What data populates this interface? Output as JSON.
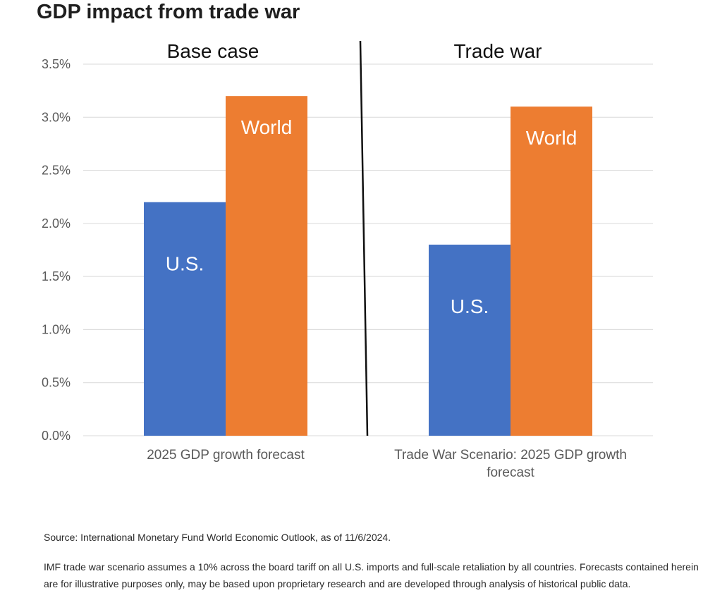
{
  "page": {
    "title": "GDP impact from trade war"
  },
  "chart_data": {
    "type": "bar",
    "title": "GDP impact from trade war",
    "xlabel": "",
    "ylabel": "",
    "ylim": [
      0,
      3.5
    ],
    "y_ticks": [
      "0.0%",
      "0.5%",
      "1.0%",
      "1.5%",
      "2.0%",
      "2.5%",
      "3.0%",
      "3.5%"
    ],
    "grid": true,
    "panels": [
      {
        "heading": "Base case",
        "category": "2025 GDP growth forecast",
        "category_lines": [
          "2025 GDP growth forecast"
        ],
        "bars": [
          {
            "label": "U.S.",
            "value": 2.2
          },
          {
            "label": "World",
            "value": 3.2
          }
        ]
      },
      {
        "heading": "Trade war",
        "category": "Trade War Scenario: 2025 GDP growth forecast",
        "category_lines": [
          "Trade War Scenario: 2025 GDP growth",
          "forecast"
        ],
        "bars": [
          {
            "label": "U.S.",
            "value": 1.8
          },
          {
            "label": "World",
            "value": 3.1
          }
        ]
      }
    ],
    "colors": {
      "U.S.": "#4472c4",
      "World": "#ed7d31",
      "grid": "#d9d9d9",
      "divider": "#111111",
      "axis_text": "#595959"
    }
  },
  "footnotes": {
    "source": "Source: International Monetary Fund World Economic Outlook, as of 11/6/2024.",
    "note": "IMF trade war scenario assumes a 10% across the board tariff on all U.S. imports and full-scale retaliation by all countries. Forecasts contained herein are for illustrative purposes only, may be based upon proprietary research and are developed through analysis of historical public data."
  }
}
